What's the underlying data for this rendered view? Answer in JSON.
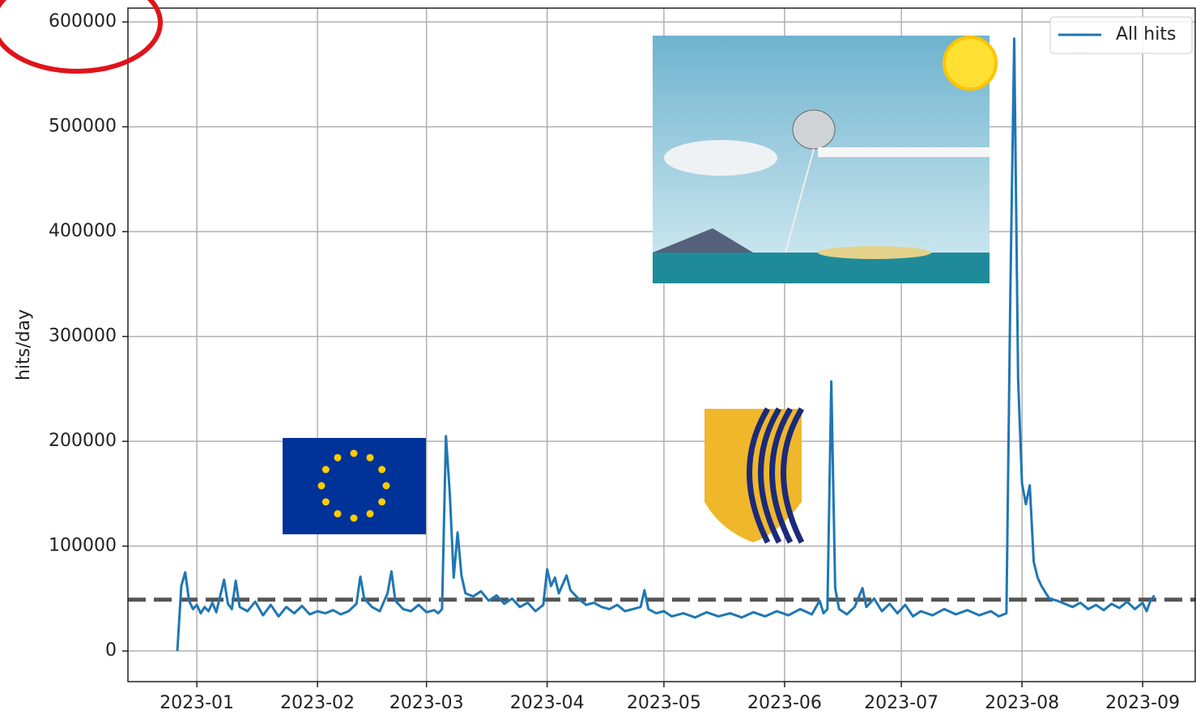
{
  "chart_data": {
    "type": "line",
    "y_label": "hits/day",
    "x": [
      -5,
      -4,
      -3,
      -2,
      -1,
      0,
      1,
      2,
      3,
      4,
      5,
      7,
      8,
      9,
      10,
      11,
      13,
      15,
      17,
      19,
      21,
      23,
      25,
      27,
      29,
      31,
      33,
      35,
      37,
      39,
      41,
      42,
      43,
      45,
      47,
      49,
      50,
      51,
      53,
      55,
      57,
      59,
      61,
      62,
      63,
      64,
      65,
      66,
      67,
      68,
      69,
      71,
      73,
      75,
      77,
      79,
      81,
      83,
      85,
      87,
      89,
      90,
      91,
      92,
      93,
      95,
      96,
      98,
      100,
      102,
      104,
      106,
      108,
      110,
      112,
      114,
      115,
      116,
      118,
      120,
      122,
      125,
      128,
      131,
      134,
      137,
      140,
      143,
      146,
      149,
      152,
      155,
      158,
      160,
      161,
      162,
      163,
      164,
      165,
      167,
      169,
      171,
      172,
      174,
      176,
      178,
      180,
      182,
      184,
      186,
      189,
      192,
      195,
      198,
      201,
      204,
      206,
      208,
      209,
      210,
      211,
      212,
      213,
      214,
      215,
      216,
      217,
      219,
      221,
      223,
      225,
      227,
      229,
      231,
      233,
      235,
      237,
      239,
      241,
      243,
      244,
      245,
      246
    ],
    "series": [
      {
        "name": "All hits",
        "color": "#1f77b4",
        "values": [
          0,
          62000,
          75000,
          48000,
          40000,
          44000,
          36000,
          42000,
          38000,
          46000,
          37000,
          68000,
          45000,
          40000,
          67000,
          42000,
          38000,
          47000,
          34000,
          44000,
          33000,
          42000,
          36000,
          43000,
          35000,
          38000,
          36000,
          39000,
          35000,
          38000,
          45000,
          71000,
          50000,
          42000,
          38000,
          55000,
          76000,
          48000,
          40000,
          38000,
          44000,
          37000,
          39000,
          36000,
          40000,
          205000,
          150000,
          70000,
          113000,
          72000,
          55000,
          52000,
          57000,
          48000,
          53000,
          45000,
          50000,
          42000,
          46000,
          38000,
          44000,
          78000,
          62000,
          70000,
          55000,
          72000,
          58000,
          50000,
          44000,
          46000,
          42000,
          40000,
          44000,
          38000,
          40000,
          42000,
          58000,
          40000,
          36000,
          38000,
          33000,
          36000,
          32000,
          37000,
          33000,
          36000,
          32000,
          37000,
          33000,
          38000,
          34000,
          40000,
          35000,
          48000,
          36000,
          40000,
          257000,
          60000,
          40000,
          35000,
          42000,
          60000,
          42000,
          50000,
          38000,
          45000,
          36000,
          44000,
          33000,
          38000,
          34000,
          40000,
          35000,
          39000,
          34000,
          38000,
          33000,
          36000,
          340000,
          584000,
          260000,
          160000,
          140000,
          158000,
          85000,
          70000,
          62000,
          50000,
          48000,
          45000,
          42000,
          46000,
          40000,
          44000,
          39000,
          45000,
          41000,
          47000,
          40000,
          46000,
          38000,
          48000,
          53000
        ]
      }
    ],
    "reference_line": 49000,
    "xlim": [
      -17.7,
      256.7
    ],
    "xticks": [
      {
        "value": 0,
        "label": "2023-01"
      },
      {
        "value": 31,
        "label": "2023-02"
      },
      {
        "value": 59,
        "label": "2023-03"
      },
      {
        "value": 90,
        "label": "2023-04"
      },
      {
        "value": 120,
        "label": "2023-05"
      },
      {
        "value": 151,
        "label": "2023-06"
      },
      {
        "value": 181,
        "label": "2023-07"
      },
      {
        "value": 212,
        "label": "2023-08"
      },
      {
        "value": 243,
        "label": "2023-09"
      }
    ],
    "ylim": [
      -29200,
      613200
    ],
    "yticks": [
      0,
      100000,
      200000,
      300000,
      400000,
      500000,
      600000
    ],
    "grid": true,
    "legend": "upper right"
  }
}
